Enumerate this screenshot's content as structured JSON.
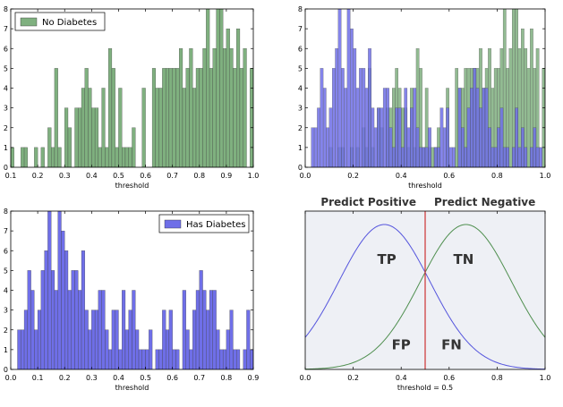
{
  "chart_data": [
    {
      "type": "bar",
      "xlabel": "threshold",
      "xlim": [
        0.1,
        1.0
      ],
      "ylim": [
        0,
        8
      ],
      "xticks": [
        "0.1",
        "0.2",
        "0.3",
        "0.4",
        "0.5",
        "0.6",
        "0.7",
        "0.8",
        "0.9",
        "1.0"
      ],
      "yticks": [
        "0",
        "1",
        "2",
        "3",
        "4",
        "5",
        "6",
        "7",
        "8"
      ],
      "legend": "top-left",
      "grid": false,
      "series": [
        {
          "name": "No Diabetes",
          "color": "#7fb07f",
          "bin_width": 0.0125,
          "x_start": 0.1,
          "values": [
            1,
            0,
            0,
            1,
            1,
            0,
            0,
            1,
            0,
            1,
            0,
            2,
            1,
            5,
            1,
            0,
            3,
            2,
            0,
            3,
            3,
            4,
            5,
            4,
            3,
            3,
            1,
            4,
            1,
            6,
            5,
            1,
            4,
            1,
            1,
            1,
            2,
            0,
            0,
            4,
            0,
            0,
            5,
            4,
            4,
            5,
            5,
            5,
            5,
            5,
            6,
            4,
            5,
            6,
            4,
            5,
            5,
            6,
            8,
            5,
            6,
            8,
            8,
            6,
            7,
            6,
            5,
            7,
            5,
            6,
            0,
            5,
            6,
            6,
            2,
            3,
            1,
            1,
            1,
            1
          ]
        }
      ]
    },
    {
      "type": "bar",
      "xlabel": "threshold",
      "xlim": [
        0.0,
        1.0
      ],
      "ylim": [
        0,
        8
      ],
      "xticks": [
        "0.0",
        "0.2",
        "0.4",
        "0.6",
        "0.8",
        "1.0"
      ],
      "yticks": [
        "0",
        "1",
        "2",
        "3",
        "4",
        "5",
        "6",
        "7",
        "8"
      ],
      "grid": false,
      "series": [
        {
          "name": "No Diabetes",
          "color": "#7fb07f",
          "bin_width": 0.0125,
          "x_start": 0.1,
          "values": [
            1,
            0,
            0,
            1,
            1,
            0,
            0,
            1,
            0,
            1,
            0,
            2,
            1,
            5,
            1,
            0,
            3,
            2,
            0,
            3,
            3,
            4,
            5,
            4,
            3,
            3,
            1,
            4,
            1,
            6,
            5,
            1,
            4,
            1,
            1,
            1,
            2,
            0,
            0,
            4,
            0,
            0,
            5,
            4,
            4,
            5,
            5,
            5,
            5,
            5,
            6,
            4,
            5,
            6,
            4,
            5,
            5,
            6,
            8,
            5,
            6,
            8,
            8,
            6,
            7,
            6,
            5,
            7,
            5,
            6,
            0,
            5,
            6,
            6,
            2,
            3,
            1,
            1,
            1,
            1
          ]
        },
        {
          "name": "Has Diabetes",
          "color": "#6f6fe8",
          "bin_width": 0.0125,
          "x_start": 0.025,
          "values": [
            2,
            2,
            3,
            5,
            4,
            2,
            3,
            5,
            6,
            8,
            5,
            4,
            8,
            7,
            6,
            4,
            5,
            5,
            4,
            6,
            3,
            2,
            3,
            3,
            4,
            4,
            2,
            1,
            3,
            3,
            1,
            4,
            2,
            3,
            4,
            2,
            1,
            1,
            1,
            2,
            0,
            1,
            1,
            3,
            2,
            3,
            1,
            1,
            0,
            4,
            2,
            1,
            3,
            4,
            5,
            4,
            3,
            4,
            4,
            2,
            1,
            1,
            2,
            3,
            1,
            1,
            0,
            1,
            3,
            1,
            2,
            1,
            0,
            1,
            2,
            1,
            1,
            0,
            1,
            1
          ]
        }
      ]
    },
    {
      "type": "bar",
      "xlabel": "threshold",
      "xlim": [
        0.0,
        0.9
      ],
      "ylim": [
        0,
        8
      ],
      "xticks": [
        "0.0",
        "0.1",
        "0.2",
        "0.3",
        "0.4",
        "0.5",
        "0.6",
        "0.7",
        "0.8",
        "0.9"
      ],
      "yticks": [
        "0",
        "1",
        "2",
        "3",
        "4",
        "5",
        "6",
        "7",
        "8"
      ],
      "legend": "top-right",
      "grid": false,
      "series": [
        {
          "name": "Has Diabetes",
          "color": "#6f6fe8",
          "bin_width": 0.0125,
          "x_start": 0.025,
          "values": [
            2,
            2,
            3,
            5,
            4,
            2,
            3,
            5,
            6,
            8,
            5,
            4,
            8,
            7,
            6,
            4,
            5,
            5,
            4,
            6,
            3,
            2,
            3,
            3,
            4,
            4,
            2,
            1,
            3,
            3,
            1,
            4,
            2,
            3,
            4,
            2,
            1,
            1,
            1,
            2,
            0,
            1,
            1,
            3,
            2,
            3,
            1,
            1,
            0,
            4,
            2,
            1,
            3,
            4,
            5,
            4,
            3,
            4,
            4,
            2,
            1,
            1,
            2,
            3,
            1,
            1,
            0,
            1,
            3,
            1,
            2,
            1,
            0,
            1,
            2,
            1,
            1,
            0,
            1,
            1
          ]
        }
      ]
    },
    {
      "type": "line",
      "xlabel": "threshold = 0.5",
      "xlim": [
        0.0,
        1.0
      ],
      "xticks": [
        "0.0",
        "0.2",
        "0.4",
        "0.6",
        "0.8",
        "1.0"
      ],
      "background": "#eef0f5",
      "threshold": 0.5,
      "threshold_color": "#cc3333",
      "regions": [
        "Predict Positive",
        "Predict Negative"
      ],
      "cell_labels": [
        {
          "text": "TP",
          "x": 0.34,
          "y": 0.7
        },
        {
          "text": "TN",
          "x": 0.66,
          "y": 0.7
        },
        {
          "text": "FP",
          "x": 0.4,
          "y": 0.16
        },
        {
          "text": "FN",
          "x": 0.61,
          "y": 0.16
        }
      ],
      "series": [
        {
          "color": "#5555dd",
          "mean": 0.33,
          "sd": 0.19
        },
        {
          "color": "#4f8f4f",
          "mean": 0.67,
          "sd": 0.19
        }
      ]
    }
  ]
}
